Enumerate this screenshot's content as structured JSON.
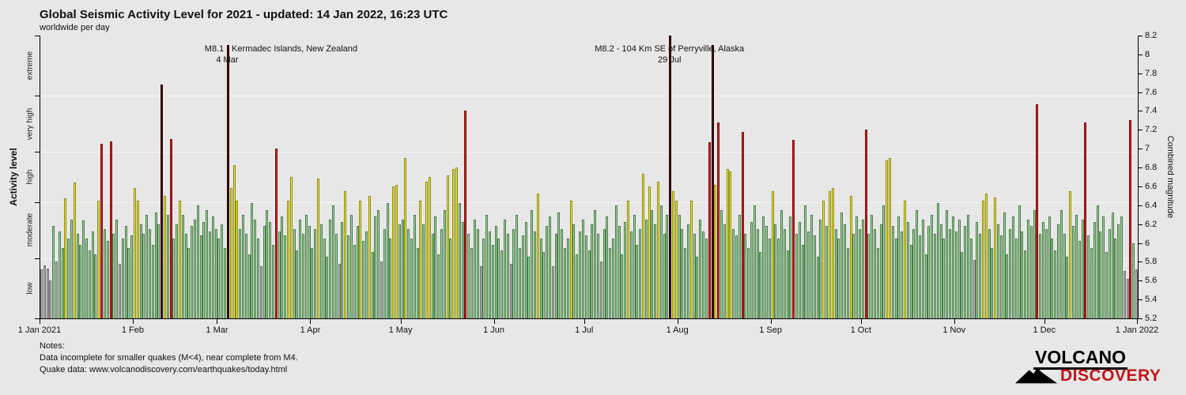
{
  "notes": {
    "heading": "Notes:",
    "line1": "Data incomplete for smaller quakes (M<4), near complete from M4.",
    "line2": "Quake data: www.volcanodiscovery.com/earthquakes/today.html"
  },
  "logo": {
    "line1": "VOLCANO",
    "line2": "DISCOVERY"
  },
  "colors": {
    "background": "#e7e7e7",
    "grid": "#f6f6f6",
    "axis": "#000000",
    "text": "#111111",
    "discovery_red": "#c0161c"
  },
  "chart_data": {
    "type": "bar",
    "title": "Global Seismic Activity Level for 2021 - updated: 14 Jan 2022, 16:23 UTC",
    "subtitle": "worldwide per day",
    "x_axis": {
      "labels": [
        "1 Jan 2021",
        "1 Feb",
        "1 Mar",
        "1 Apr",
        "1 May",
        "1 Jun",
        "1 Jul",
        "1 Aug",
        "1 Sep",
        "1 Oct",
        "1 Nov",
        "1 Dec",
        "1 Jan 2022"
      ],
      "days": [
        0,
        31,
        59,
        90,
        120,
        151,
        181,
        212,
        243,
        273,
        304,
        334,
        365
      ]
    },
    "y_left": {
      "label": "Activity level",
      "categories": [
        "low",
        "moderate",
        "high",
        "very high",
        "extreme"
      ],
      "boundaries": [
        5.2,
        5.84,
        6.43,
        6.97,
        7.56,
        8.2
      ]
    },
    "y_right": {
      "label": "Combined magnitude",
      "min": 5.2,
      "max": 8.2,
      "step": 0.2,
      "tick_labels": [
        "5.2",
        "5.4",
        "5.6",
        "5.8",
        "6",
        "6.2",
        "6.4",
        "6.6",
        "6.8",
        "7",
        "7.2",
        "7.4",
        "7.6",
        "7.8",
        "8",
        "8.2"
      ]
    },
    "bands": [
      {
        "label": "low",
        "max": 5.84,
        "fill": "#b3b3b3",
        "edge": "#707070"
      },
      {
        "label": "moderate",
        "max": 6.43,
        "fill": "#a2d89e",
        "edge": "#4a7a4a"
      },
      {
        "label": "high",
        "max": 6.97,
        "fill": "#f3ec33",
        "edge": "#8a8a1a"
      },
      {
        "label": "very high",
        "max": 7.56,
        "fill": "#da1f1f",
        "edge": "#7d0d0d"
      },
      {
        "label": "extreme",
        "max": 8.3,
        "fill": "#530b0b",
        "edge": "#1f0303"
      }
    ],
    "annotations": [
      {
        "text": "M8.1 - Kermadec Islands, New Zealand",
        "date": "4 Mar",
        "day": 62,
        "text_dx": 68,
        "date_dx": 0
      },
      {
        "text": "M8.2 - 104 Km SE of Perryville, Alaska",
        "date": "29 Jul",
        "day": 209,
        "text_dx": 0,
        "date_dx": 0
      }
    ],
    "grid_on": true,
    "values": [
      5.72,
      5.76,
      5.73,
      5.6,
      6.18,
      5.8,
      6.12,
      5.95,
      6.47,
      6.05,
      6.25,
      6.64,
      6.1,
      5.98,
      6.24,
      6.05,
      5.92,
      6.12,
      5.88,
      6.45,
      7.05,
      6.15,
      6.02,
      7.08,
      6.1,
      6.25,
      5.78,
      6.05,
      6.18,
      5.95,
      6.08,
      6.58,
      6.45,
      6.2,
      6.1,
      6.3,
      6.15,
      5.98,
      6.32,
      6.2,
      7.68,
      6.5,
      6.3,
      7.1,
      6.05,
      6.2,
      6.45,
      6.3,
      6.1,
      5.95,
      6.18,
      6.25,
      6.4,
      6.08,
      6.22,
      6.35,
      6.12,
      6.28,
      6.15,
      6.05,
      6.2,
      5.95,
      8.1,
      6.58,
      6.83,
      6.45,
      6.15,
      6.3,
      6.1,
      5.88,
      6.42,
      6.25,
      6.05,
      5.75,
      6.18,
      6.35,
      6.22,
      5.98,
      7.0,
      6.12,
      6.28,
      6.08,
      6.45,
      6.7,
      6.15,
      5.92,
      6.25,
      6.1,
      6.3,
      6.18,
      5.95,
      6.15,
      6.68,
      6.2,
      6.05,
      5.85,
      6.25,
      6.4,
      6.1,
      5.78,
      6.22,
      6.55,
      6.08,
      6.3,
      5.98,
      6.18,
      6.45,
      6.02,
      6.12,
      6.5,
      5.9,
      6.28,
      6.35,
      5.8,
      6.15,
      6.42,
      6.05,
      6.6,
      6.62,
      6.2,
      6.25,
      6.9,
      6.15,
      6.05,
      6.3,
      5.95,
      6.45,
      6.2,
      6.65,
      6.7,
      6.1,
      6.28,
      5.88,
      6.15,
      6.35,
      6.72,
      6.05,
      6.78,
      6.8,
      6.42,
      6.22,
      7.4,
      6.1,
      5.95,
      6.25,
      6.15,
      5.75,
      6.05,
      6.3,
      6.12,
      5.98,
      6.18,
      6.05,
      5.92,
      6.25,
      6.1,
      5.78,
      6.15,
      6.3,
      5.95,
      6.08,
      6.22,
      5.85,
      6.35,
      6.12,
      6.52,
      6.05,
      5.9,
      6.18,
      6.28,
      5.75,
      6.1,
      6.32,
      6.15,
      5.95,
      6.05,
      6.45,
      6.2,
      5.88,
      6.12,
      6.25,
      6.08,
      5.92,
      6.2,
      6.35,
      6.1,
      5.8,
      6.15,
      6.28,
      5.95,
      6.05,
      6.4,
      6.18,
      5.88,
      6.22,
      6.45,
      6.12,
      6.3,
      5.98,
      6.15,
      6.73,
      6.25,
      6.6,
      6.35,
      6.2,
      6.65,
      6.4,
      6.1,
      6.3,
      8.2,
      6.55,
      6.45,
      6.3,
      6.15,
      5.95,
      6.2,
      6.45,
      6.1,
      5.85,
      6.25,
      6.12,
      6.05,
      7.07,
      8.1,
      6.62,
      7.28,
      6.35,
      6.2,
      6.78,
      6.76,
      6.15,
      6.08,
      6.3,
      7.18,
      6.1,
      5.95,
      6.22,
      6.4,
      6.15,
      5.9,
      6.28,
      6.18,
      6.05,
      6.55,
      6.2,
      6.05,
      6.35,
      6.15,
      5.92,
      6.28,
      7.09,
      6.1,
      6.22,
      5.98,
      6.4,
      6.12,
      6.3,
      6.08,
      5.85,
      6.25,
      6.45,
      6.18,
      6.55,
      6.58,
      6.15,
      6.05,
      6.32,
      6.2,
      5.95,
      6.5,
      6.1,
      6.28,
      6.15,
      6.25,
      7.2,
      6.1,
      6.3,
      6.15,
      5.95,
      6.2,
      6.4,
      6.88,
      6.9,
      6.18,
      6.05,
      6.28,
      6.12,
      6.45,
      6.22,
      5.98,
      6.15,
      6.35,
      6.08,
      6.25,
      5.88,
      6.18,
      6.3,
      6.1,
      6.42,
      6.2,
      6.05,
      6.35,
      6.15,
      6.28,
      6.12,
      6.25,
      5.9,
      6.18,
      6.3,
      6.05,
      5.82,
      6.22,
      6.1,
      6.45,
      6.52,
      6.15,
      5.95,
      6.48,
      6.2,
      6.08,
      6.32,
      5.88,
      6.15,
      6.28,
      6.05,
      6.4,
      6.12,
      5.92,
      6.25,
      6.18,
      6.35,
      7.47,
      6.1,
      6.22,
      6.15,
      6.28,
      6.05,
      5.92,
      6.2,
      6.35,
      6.1,
      5.85,
      6.55,
      6.18,
      6.3,
      6.02,
      6.25,
      7.28,
      6.08,
      5.95,
      6.22,
      6.4,
      6.12,
      6.28,
      5.9,
      6.15,
      6.32,
      6.05,
      6.2,
      6.28,
      5.7,
      5.62,
      7.3,
      6.0,
      5.72
    ]
  }
}
